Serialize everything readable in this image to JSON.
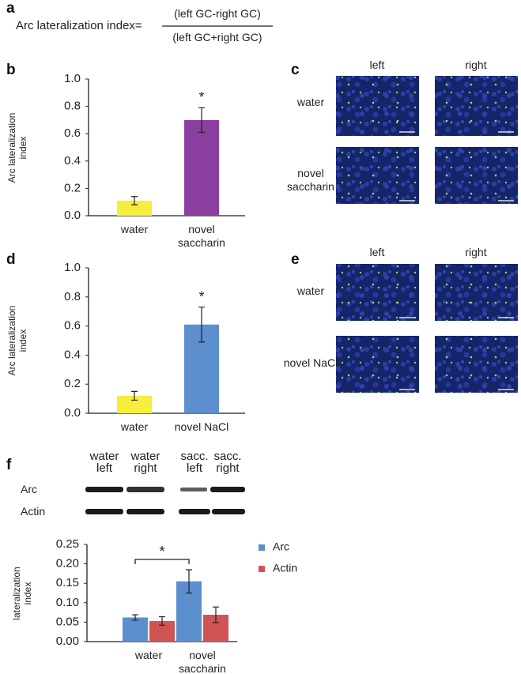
{
  "panel_labels": [
    "a",
    "b",
    "c",
    "d",
    "e",
    "f"
  ],
  "formula": {
    "lhs": "Arc lateralization index=",
    "numerator": "(left GC-right GC)",
    "denominator": "(left GC+right GC)"
  },
  "images_c": {
    "columns": [
      "left",
      "right"
    ],
    "rows": [
      "water",
      "novel saccharin"
    ]
  },
  "images_e": {
    "columns": [
      "left",
      "right"
    ],
    "rows": [
      "water",
      "novel NaCl"
    ]
  },
  "blot": {
    "columns": [
      "water left",
      "water right",
      "sacc. left",
      "sacc. right"
    ],
    "rows": [
      "Arc",
      "Actin"
    ]
  },
  "chart_data": [
    {
      "type": "bar",
      "y_label": "Arc lateralization index",
      "categories": [
        "water",
        "novel saccharin"
      ],
      "values": [
        0.11,
        0.7
      ],
      "errors": [
        0.03,
        0.09
      ],
      "colors": [
        "#f6ee3c",
        "#8b3e9f"
      ],
      "ylim": [
        0,
        1
      ],
      "yticks": [
        {
          "value": 0,
          "label": "0.0"
        },
        0.2,
        0.4,
        0.6,
        0.8,
        {
          "value": 1,
          "label": "1.0"
        }
      ],
      "annotations": [
        "*"
      ]
    },
    {
      "type": "bar",
      "y_label": "Arc lateralization index",
      "categories": [
        "water",
        "novel NaCl"
      ],
      "values": [
        0.12,
        0.61
      ],
      "errors": [
        0.03,
        0.12
      ],
      "colors": [
        "#f6ee3c",
        "#5b8fcd"
      ],
      "ylim": [
        0,
        1
      ],
      "yticks": [
        {
          "value": 0,
          "label": "0.0"
        },
        0.2,
        0.4,
        0.6,
        0.8,
        {
          "value": 1,
          "label": "1.0"
        }
      ],
      "annotations": [
        "*"
      ]
    },
    {
      "type": "grouped-bar",
      "y_label": "lateralization index",
      "categories": [
        "water",
        "novel saccharin"
      ],
      "series": [
        {
          "name": "Arc",
          "color": "#5b8fcd",
          "values": [
            0.062,
            0.155
          ],
          "errors": [
            0.007,
            0.03
          ]
        },
        {
          "name": "Actin",
          "color": "#d05454",
          "values": [
            0.053,
            0.069
          ],
          "errors": [
            0.011,
            0.02
          ]
        }
      ],
      "ylim": [
        0,
        0.25
      ],
      "yticks": [
        {
          "value": 0,
          "label": "0.00"
        },
        0.05,
        {
          "value": 0.1,
          "label": "0.10"
        },
        0.15,
        {
          "value": 0.2,
          "label": "0.20"
        },
        0.25
      ],
      "annotations": [
        "*"
      ]
    }
  ]
}
